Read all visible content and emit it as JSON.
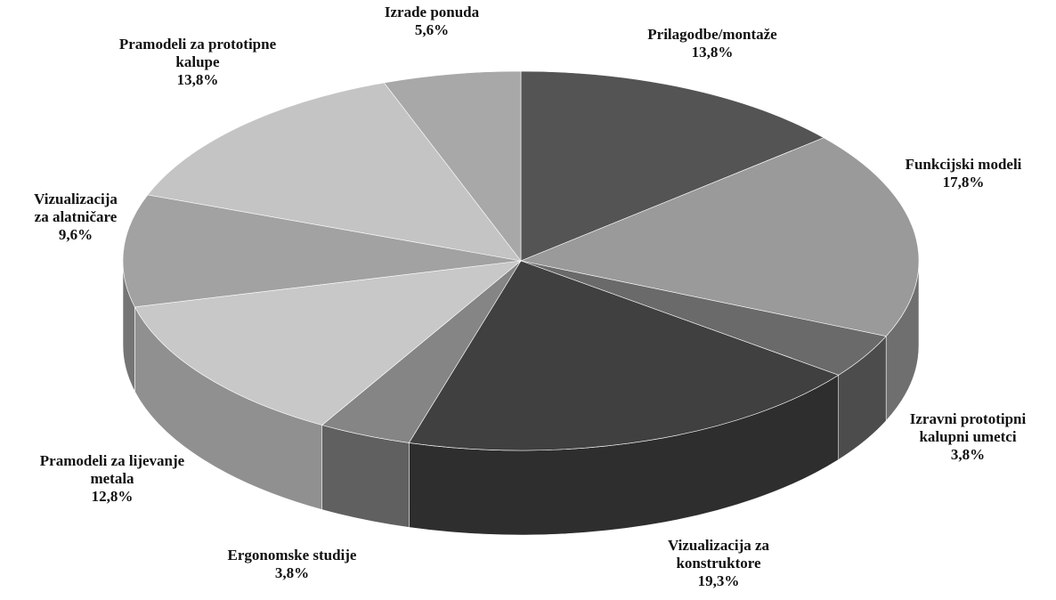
{
  "chart_data": {
    "type": "pie3d",
    "categories": [
      "Prilagodbe/montaže",
      "Funkcijski modeli",
      "Izravni prototipni kalupni umetci",
      "Vizualizacija za konstruktore",
      "Ergonomske studije",
      "Pramodeli za lijevanje metala",
      "Vizualizacija za alatničare",
      "Pramodeli za prototipne kalupe",
      "Izrade ponuda"
    ],
    "values": [
      13.8,
      17.8,
      3.8,
      19.3,
      3.8,
      12.8,
      9.6,
      13.8,
      5.6
    ],
    "value_labels": [
      "13,8%",
      "17,8%",
      "3,8%",
      "19,3%",
      "3,8%",
      "12,8%",
      "9,6%",
      "13,8%",
      "5,6%"
    ],
    "colors": [
      "#545454",
      "#9a9a9a",
      "#6a6a6a",
      "#404040",
      "#858585",
      "#c8c8c8",
      "#a2a2a2",
      "#c4c4c4",
      "#a8a8a8"
    ]
  }
}
